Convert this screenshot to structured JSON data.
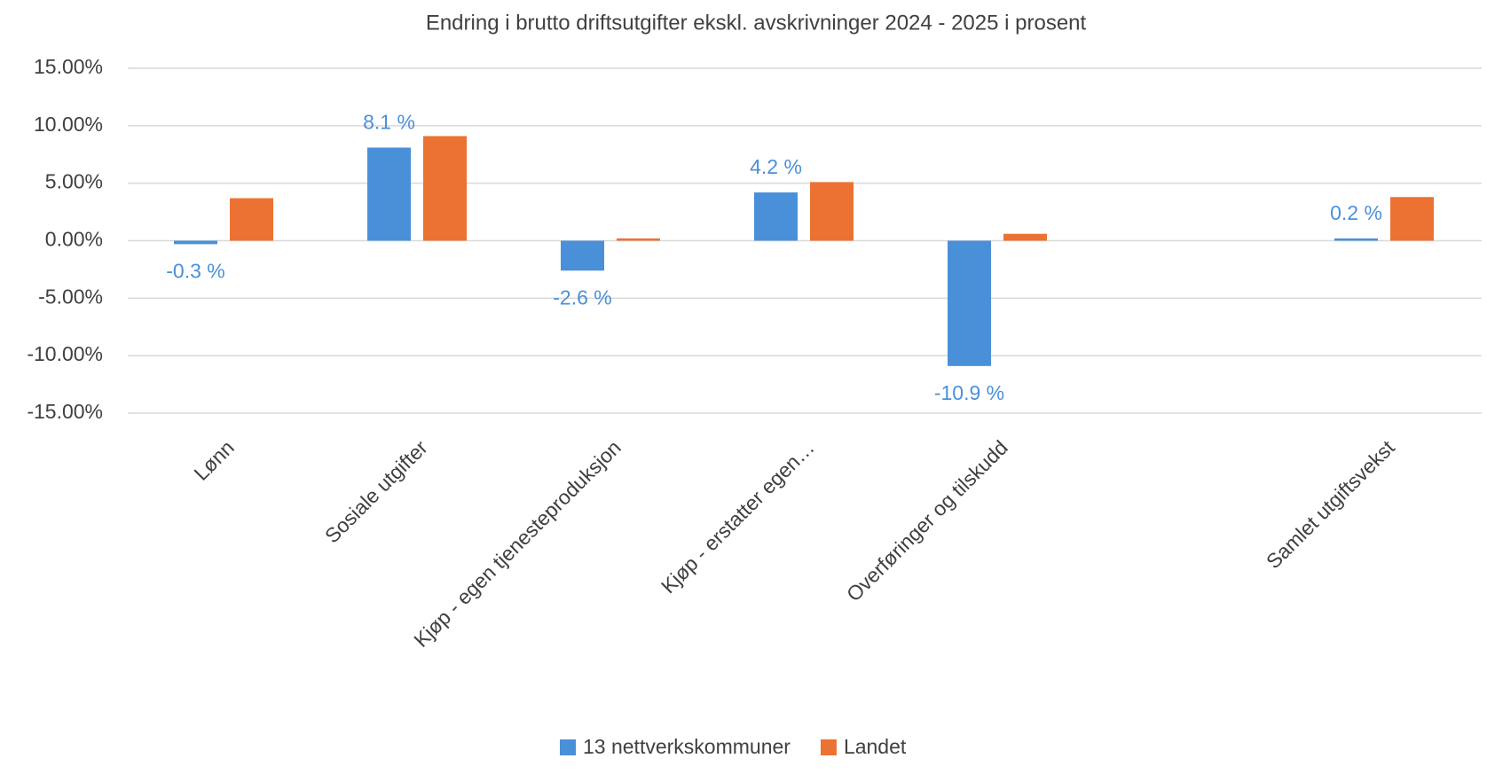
{
  "chart_data": {
    "type": "bar",
    "title": "Endring i brutto driftsutgifter ekskl. avskrivninger 2024 - 2025 i prosent",
    "categories": [
      "Lønn",
      "Sosiale utgifter",
      "Kjøp - egen tjenesteproduksjon",
      "Kjøp - erstatter egen…",
      "Overføringer og tilskudd",
      null,
      "Samlet utgiftsvekst"
    ],
    "series": [
      {
        "name": "13 nettverkskommuner",
        "color": "#4a90d9",
        "values": [
          -0.3,
          8.1,
          -2.6,
          4.2,
          -10.9,
          null,
          0.2
        ],
        "value_labels": [
          "-0.3 %",
          "8.1 %",
          "-2.6 %",
          "4.2 %",
          "-10.9 %",
          null,
          "0.2 %"
        ]
      },
      {
        "name": "Landet",
        "color": "#eb7233",
        "values": [
          3.7,
          9.1,
          0.2,
          5.1,
          0.6,
          null,
          3.8
        ]
      }
    ],
    "ylim": [
      -15,
      15
    ],
    "yticks": [
      {
        "value": -15,
        "label": "-15.00%"
      },
      {
        "value": -10,
        "label": "-10.00%"
      },
      {
        "value": -5,
        "label": "-5.00%"
      },
      {
        "value": 0,
        "label": "0.00%"
      },
      {
        "value": 5,
        "label": "5.00%"
      },
      {
        "value": 10,
        "label": "10.00%"
      },
      {
        "value": 15,
        "label": "15.00%"
      }
    ],
    "grid": true,
    "legend": "bottom"
  }
}
